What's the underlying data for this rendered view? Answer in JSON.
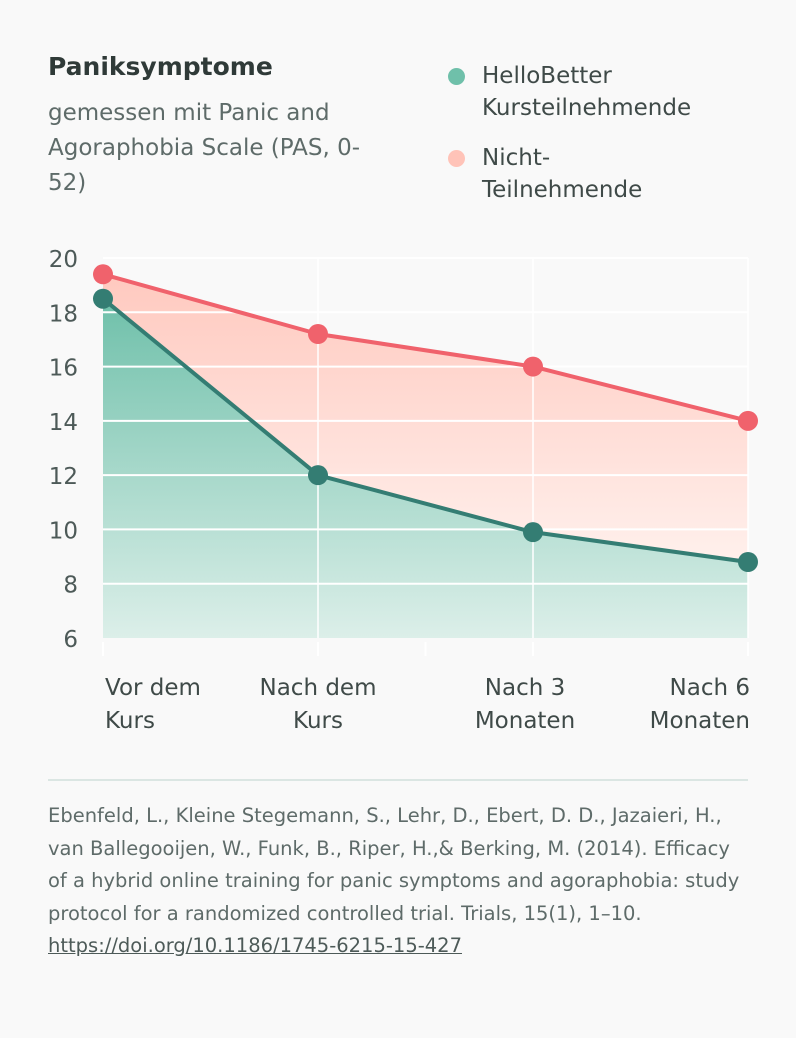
{
  "chart_data": {
    "type": "area",
    "title": "Paniksymptome",
    "subtitle": "gemessen mit Panic and Agoraphobia Scale (PAS, 0-52)",
    "categories": [
      "Vor dem Kurs",
      "Nach dem Kurs",
      "Nach 3 Monaten",
      "Nach 6 Monaten"
    ],
    "category_lines": [
      [
        "Vor dem",
        "Kurs"
      ],
      [
        "Nach dem",
        "Kurs"
      ],
      [
        "Nach 3",
        "Monaten"
      ],
      [
        "Nach 6",
        "Monaten"
      ]
    ],
    "ylim": [
      6,
      20
    ],
    "yticks": [
      "6",
      "8",
      "10",
      "12",
      "14",
      "16",
      "18",
      "20"
    ],
    "grid": true,
    "legend_placement": "top-right",
    "series": [
      {
        "name": "HelloBetter Kursteilnehmende",
        "values": [
          18.5,
          12.0,
          9.9,
          8.8
        ],
        "color": "#347d73",
        "fill": "#6fc0aa"
      },
      {
        "name": "Nicht-Teilnehmende",
        "values": [
          19.4,
          17.2,
          16.0,
          14.0
        ],
        "color": "#f0626c",
        "fill": "#ffc9bf"
      }
    ]
  },
  "legend": {
    "items": [
      {
        "line1": "HelloBetter",
        "line2": "Kursteilnehmende",
        "color": "#6fc0aa"
      },
      {
        "line1": "Nicht-",
        "line2": "Teilnehmende",
        "color": "#ffc3b8"
      }
    ]
  },
  "reference": {
    "text": "Ebenfeld, L., Kleine Stegemann, S., Lehr, D., Ebert, D. D., Jazaieri, H., van Ballegooijen, W., Funk, B., Riper, H.,& Berking, M. (2014). Efficacy of a hybrid online training for panic symptoms and agoraphobia: study protocol for a randomized controlled trial. Trials, 15(1), 1–10. ",
    "link": "https://doi.org/10.1186/1745-6215-15-427"
  }
}
